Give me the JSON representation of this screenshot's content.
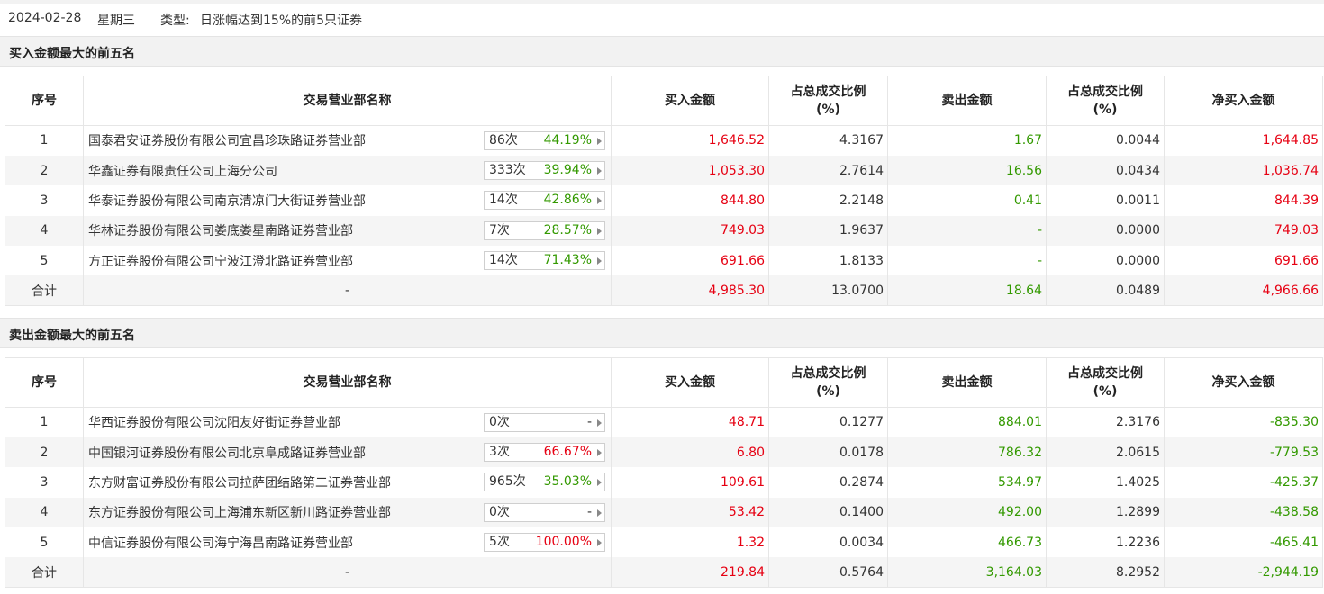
{
  "header": {
    "date": "2024-02-28",
    "weekday": "星期三",
    "type_label": "类型:",
    "type_value": "日涨幅达到15%的前5只证券"
  },
  "columns": {
    "idx": "序号",
    "name": "交易营业部名称",
    "buy": "买入金额",
    "buy_pct_1": "占总成交比例",
    "buy_pct_2": "(%)",
    "sell": "卖出金额",
    "sell_pct_1": "占总成交比例",
    "sell_pct_2": "(%)",
    "net": "净买入金额"
  },
  "buy_section": {
    "title": "买入金额最大的前五名",
    "rows": [
      {
        "idx": "1",
        "name": "国泰君安证券股份有限公司宜昌珍珠路证券营业部",
        "count": "86次",
        "rate": "44.19%",
        "rate_tone": "up",
        "buy": "1,646.52",
        "buy_pct": "4.3167",
        "sell": "1.67",
        "sell_pct": "0.0044",
        "net": "1,644.85",
        "net_tone": "red"
      },
      {
        "idx": "2",
        "name": "华鑫证券有限责任公司上海分公司",
        "count": "333次",
        "rate": "39.94%",
        "rate_tone": "up",
        "buy": "1,053.30",
        "buy_pct": "2.7614",
        "sell": "16.56",
        "sell_pct": "0.0434",
        "net": "1,036.74",
        "net_tone": "red"
      },
      {
        "idx": "3",
        "name": "华泰证券股份有限公司南京清凉门大街证券营业部",
        "count": "14次",
        "rate": "42.86%",
        "rate_tone": "up",
        "buy": "844.80",
        "buy_pct": "2.2148",
        "sell": "0.41",
        "sell_pct": "0.0011",
        "net": "844.39",
        "net_tone": "red"
      },
      {
        "idx": "4",
        "name": "华林证券股份有限公司娄底娄星南路证券营业部",
        "count": "7次",
        "rate": "28.57%",
        "rate_tone": "up",
        "buy": "749.03",
        "buy_pct": "1.9637",
        "sell": "-",
        "sell_pct": "0.0000",
        "net": "749.03",
        "net_tone": "red"
      },
      {
        "idx": "5",
        "name": "方正证券股份有限公司宁波江澄北路证券营业部",
        "count": "14次",
        "rate": "71.43%",
        "rate_tone": "up",
        "buy": "691.66",
        "buy_pct": "1.8133",
        "sell": "-",
        "sell_pct": "0.0000",
        "net": "691.66",
        "net_tone": "red"
      }
    ],
    "total": {
      "label": "合计",
      "name": "-",
      "buy": "4,985.30",
      "buy_pct": "13.0700",
      "sell": "18.64",
      "sell_pct": "0.0489",
      "net": "4,966.66",
      "net_tone": "red"
    }
  },
  "sell_section": {
    "title": "卖出金额最大的前五名",
    "rows": [
      {
        "idx": "1",
        "name": "华西证券股份有限公司沈阳友好街证券营业部",
        "count": "0次",
        "rate": "-",
        "rate_tone": "none",
        "buy": "48.71",
        "buy_pct": "0.1277",
        "sell": "884.01",
        "sell_pct": "2.3176",
        "net": "-835.30",
        "net_tone": "green"
      },
      {
        "idx": "2",
        "name": "中国银河证券股份有限公司北京阜成路证券营业部",
        "count": "3次",
        "rate": "66.67%",
        "rate_tone": "hot",
        "buy": "6.80",
        "buy_pct": "0.0178",
        "sell": "786.32",
        "sell_pct": "2.0615",
        "net": "-779.53",
        "net_tone": "green"
      },
      {
        "idx": "3",
        "name": "东方财富证券股份有限公司拉萨团结路第二证券营业部",
        "count": "965次",
        "rate": "35.03%",
        "rate_tone": "up",
        "buy": "109.61",
        "buy_pct": "0.2874",
        "sell": "534.97",
        "sell_pct": "1.4025",
        "net": "-425.37",
        "net_tone": "green"
      },
      {
        "idx": "4",
        "name": "东方证券股份有限公司上海浦东新区新川路证券营业部",
        "count": "0次",
        "rate": "-",
        "rate_tone": "none",
        "buy": "53.42",
        "buy_pct": "0.1400",
        "sell": "492.00",
        "sell_pct": "1.2899",
        "net": "-438.58",
        "net_tone": "green"
      },
      {
        "idx": "5",
        "name": "中信证券股份有限公司海宁海昌南路证券营业部",
        "count": "5次",
        "rate": "100.00%",
        "rate_tone": "hot",
        "buy": "1.32",
        "buy_pct": "0.0034",
        "sell": "466.73",
        "sell_pct": "1.2236",
        "net": "-465.41",
        "net_tone": "green"
      }
    ],
    "total": {
      "label": "合计",
      "name": "-",
      "buy": "219.84",
      "buy_pct": "0.5764",
      "sell": "3,164.03",
      "sell_pct": "8.2952",
      "net": "-2,944.19",
      "net_tone": "green"
    }
  }
}
